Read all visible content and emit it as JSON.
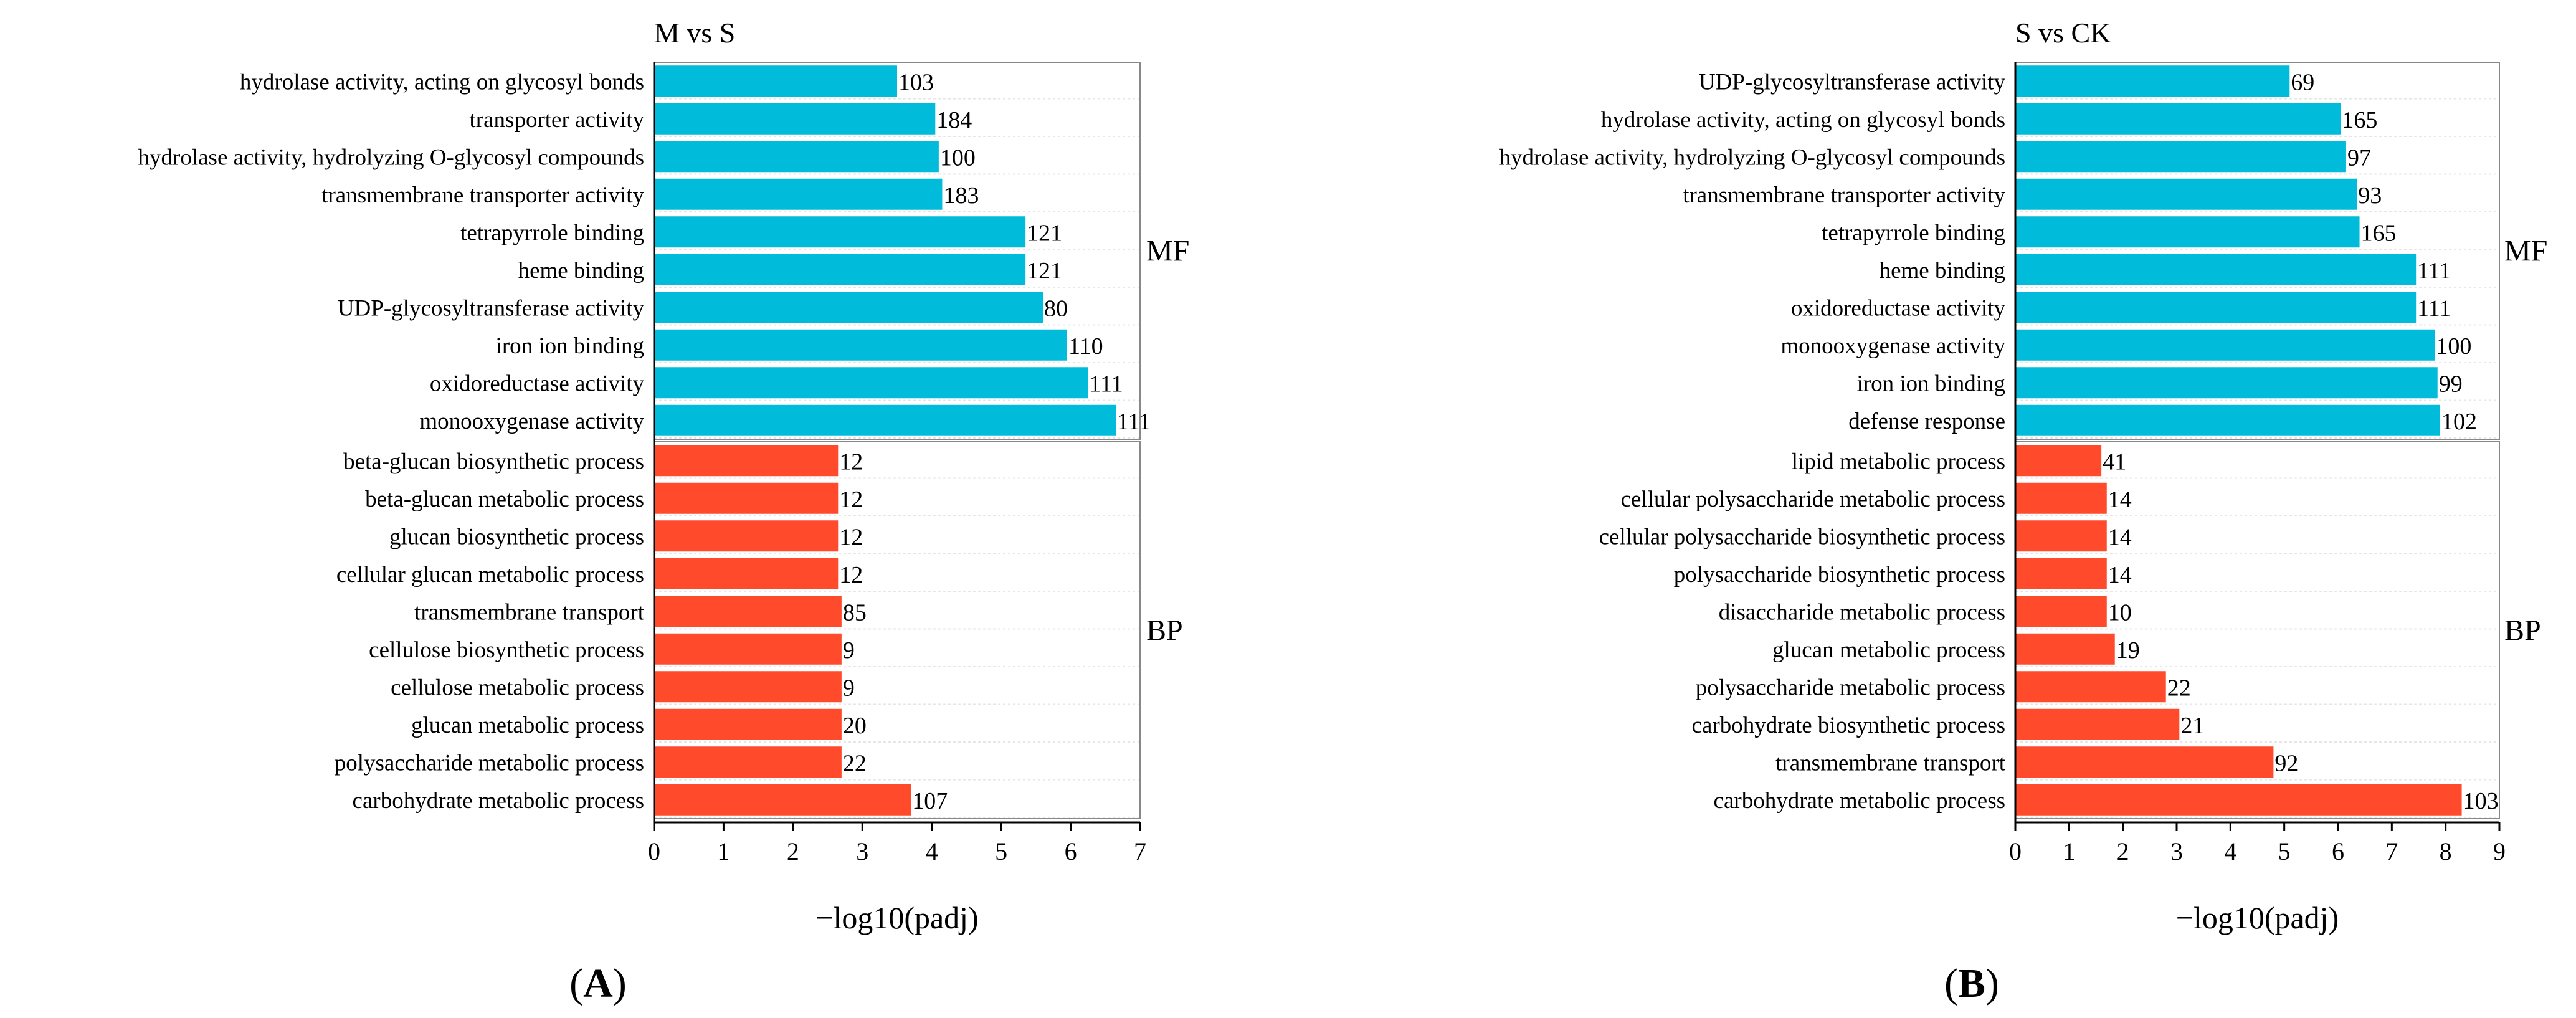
{
  "colors": {
    "mf": "#00BBD9",
    "bp": "#FF4A2C",
    "axis": "#000000",
    "grid": "#E6E6E6"
  },
  "chart_data": [
    {
      "type": "bar",
      "orientation": "horizontal",
      "panel_label": "A",
      "title": "M vs S",
      "xlabel": "−log10(padj)",
      "xlim": [
        0,
        7
      ],
      "xticks": [
        0,
        1,
        2,
        3,
        4,
        5,
        6,
        7
      ],
      "groups": [
        {
          "name": "MF",
          "color_key": "mf",
          "terms": [
            {
              "label": "hydrolase activity, acting on glycosyl bonds",
              "value": 3.5,
              "count": "103"
            },
            {
              "label": "transporter activity",
              "value": 4.05,
              "count": "184"
            },
            {
              "label": "hydrolase activity, hydrolyzing O-glycosyl compounds",
              "value": 4.1,
              "count": "100"
            },
            {
              "label": "transmembrane transporter activity",
              "value": 4.15,
              "count": "183"
            },
            {
              "label": "tetrapyrrole binding",
              "value": 5.35,
              "count": "121"
            },
            {
              "label": "heme binding",
              "value": 5.35,
              "count": "121"
            },
            {
              "label": "UDP-glycosyltransferase activity",
              "value": 5.6,
              "count": "80"
            },
            {
              "label": "iron ion binding",
              "value": 5.95,
              "count": "110"
            },
            {
              "label": "oxidoreductase activity",
              "value": 6.25,
              "count": "111"
            },
            {
              "label": "monooxygenase activity",
              "value": 6.65,
              "count": "111"
            }
          ]
        },
        {
          "name": "BP",
          "color_key": "bp",
          "terms": [
            {
              "label": "beta-glucan biosynthetic process",
              "value": 2.65,
              "count": "12"
            },
            {
              "label": "beta-glucan metabolic process",
              "value": 2.65,
              "count": "12"
            },
            {
              "label": "glucan biosynthetic process",
              "value": 2.65,
              "count": "12"
            },
            {
              "label": "cellular glucan metabolic process",
              "value": 2.65,
              "count": "12"
            },
            {
              "label": "transmembrane transport",
              "value": 2.7,
              "count": "85"
            },
            {
              "label": "cellulose biosynthetic process",
              "value": 2.7,
              "count": "9"
            },
            {
              "label": "cellulose metabolic process",
              "value": 2.7,
              "count": "9"
            },
            {
              "label": "glucan metabolic process",
              "value": 2.7,
              "count": "20"
            },
            {
              "label": "polysaccharide metabolic process",
              "value": 2.7,
              "count": "22"
            },
            {
              "label": "carbohydrate metabolic process",
              "value": 3.7,
              "count": "107"
            }
          ]
        }
      ]
    },
    {
      "type": "bar",
      "orientation": "horizontal",
      "panel_label": "B",
      "title": "S vs CK",
      "xlabel": "−log10(padj)",
      "xlim": [
        0,
        9
      ],
      "xticks": [
        0,
        1,
        2,
        3,
        4,
        5,
        6,
        7,
        8,
        9
      ],
      "groups": [
        {
          "name": "MF",
          "color_key": "mf",
          "terms": [
            {
              "label": "UDP-glycosyltransferase activity",
              "value": 5.1,
              "count": "69"
            },
            {
              "label": "hydrolase activity, acting on glycosyl bonds",
              "value": 6.05,
              "count": "165"
            },
            {
              "label": "hydrolase activity, hydrolyzing O-glycosyl compounds",
              "value": 6.15,
              "count": "97"
            },
            {
              "label": "transmembrane transporter activity",
              "value": 6.35,
              "count": "93"
            },
            {
              "label": "tetrapyrrole binding",
              "value": 6.4,
              "count": "165"
            },
            {
              "label": "heme binding",
              "value": 7.45,
              "count": "111"
            },
            {
              "label": "oxidoreductase activity",
              "value": 7.45,
              "count": "111"
            },
            {
              "label": "monooxygenase activity",
              "value": 7.8,
              "count": "100"
            },
            {
              "label": "iron ion binding",
              "value": 7.85,
              "count": "99"
            },
            {
              "label": "defense response",
              "value": 7.9,
              "count": "102"
            }
          ]
        },
        {
          "name": "BP",
          "color_key": "bp",
          "terms": [
            {
              "label": "lipid metabolic process",
              "value": 1.6,
              "count": "41"
            },
            {
              "label": "cellular polysaccharide metabolic process",
              "value": 1.7,
              "count": "14"
            },
            {
              "label": "cellular polysaccharide biosynthetic process",
              "value": 1.7,
              "count": "14"
            },
            {
              "label": "polysaccharide biosynthetic process",
              "value": 1.7,
              "count": "14"
            },
            {
              "label": "disaccharide metabolic process",
              "value": 1.7,
              "count": "10"
            },
            {
              "label": "glucan metabolic process",
              "value": 1.85,
              "count": "19"
            },
            {
              "label": "polysaccharide metabolic process",
              "value": 2.8,
              "count": "22"
            },
            {
              "label": "carbohydrate biosynthetic process",
              "value": 3.05,
              "count": "21"
            },
            {
              "label": "transmembrane transport",
              "value": 4.8,
              "count": "92"
            },
            {
              "label": "carbohydrate metabolic process",
              "value": 8.3,
              "count": "103"
            }
          ]
        }
      ]
    }
  ]
}
